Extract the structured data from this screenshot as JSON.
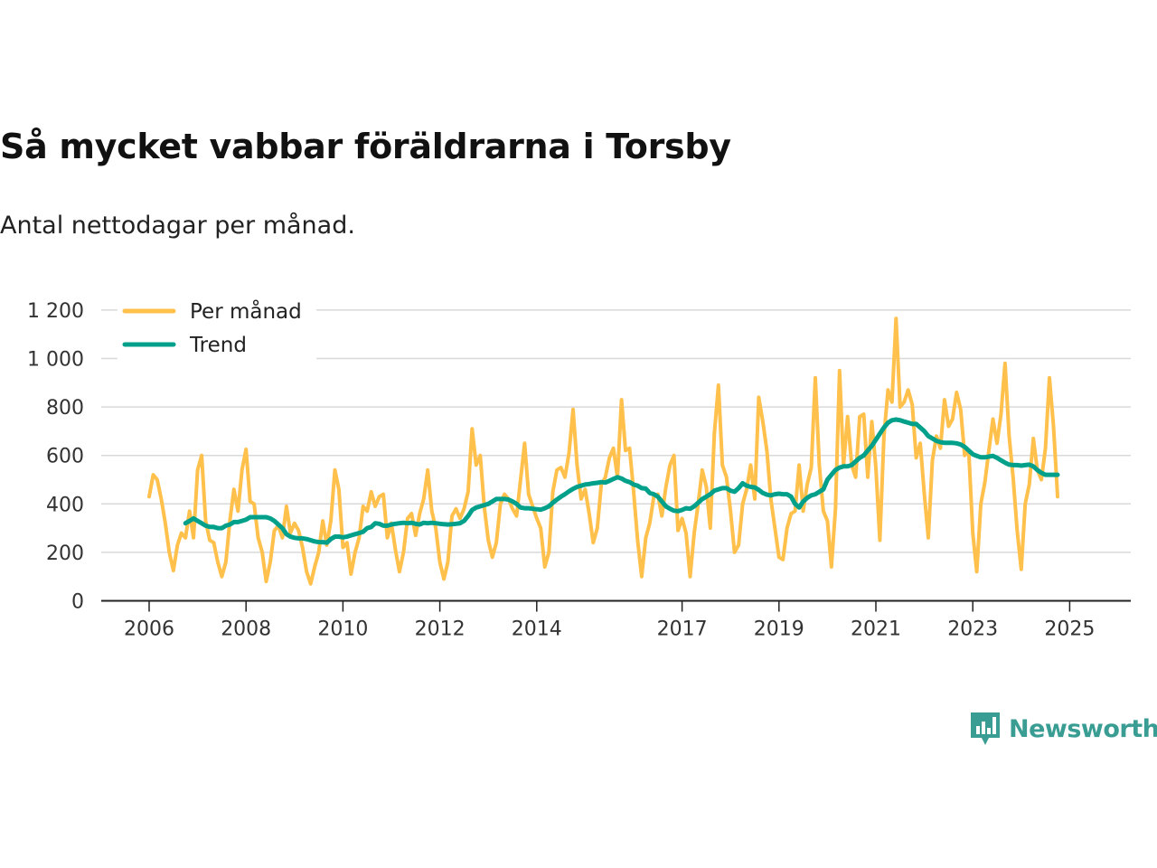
{
  "title": "Så mycket vabbar föräldrarna i Torsby",
  "subtitle": "Antal nettodagar per månad.",
  "brand": {
    "name": "Newsworthy",
    "color": "#3a9d93",
    "icon": "bar-chart-speech-bubble-icon"
  },
  "chart_data": {
    "type": "line",
    "x_start": 2006.0,
    "x_step_years": 0.08333,
    "xlim": [
      2006.0,
      2025.4
    ],
    "ylim": [
      0,
      1200
    ],
    "x_ticks": [
      2006,
      2008,
      2010,
      2012,
      2014,
      2017,
      2019,
      2021,
      2023,
      2025
    ],
    "y_ticks": [
      0,
      200,
      400,
      600,
      800,
      1000,
      1200
    ],
    "y_tick_labels": [
      "0",
      "200",
      "400",
      "600",
      "800",
      "1 000",
      "1 200"
    ],
    "grid": true,
    "legend_position": "top-left",
    "series": [
      {
        "name": "Per månad",
        "color": "#ffc04c",
        "values": [
          430,
          520,
          500,
          420,
          320,
          200,
          125,
          230,
          280,
          260,
          370,
          260,
          540,
          600,
          330,
          250,
          240,
          160,
          100,
          160,
          330,
          460,
          370,
          540,
          625,
          410,
          400,
          260,
          200,
          80,
          160,
          290,
          310,
          260,
          390,
          280,
          320,
          290,
          220,
          120,
          70,
          140,
          200,
          330,
          230,
          330,
          540,
          460,
          220,
          240,
          110,
          200,
          260,
          390,
          370,
          450,
          390,
          430,
          440,
          260,
          320,
          210,
          120,
          200,
          340,
          360,
          270,
          360,
          420,
          540,
          370,
          300,
          160,
          90,
          160,
          350,
          380,
          340,
          380,
          450,
          710,
          560,
          600,
          390,
          250,
          180,
          240,
          400,
          440,
          420,
          380,
          350,
          500,
          650,
          440,
          390,
          340,
          300,
          140,
          200,
          450,
          540,
          550,
          510,
          610,
          790,
          560,
          420,
          460,
          360,
          240,
          300,
          480,
          510,
          590,
          630,
          510,
          830,
          620,
          630,
          450,
          250,
          100,
          260,
          320,
          430,
          440,
          350,
          470,
          560,
          600,
          290,
          340,
          280,
          100,
          280,
          400,
          540,
          470,
          300,
          690,
          890,
          560,
          510,
          370,
          200,
          230,
          400,
          460,
          560,
          420,
          840,
          740,
          620,
          420,
          300,
          180,
          170,
          300,
          360,
          370,
          560,
          370,
          480,
          550,
          920,
          560,
          370,
          330,
          140,
          380,
          950,
          560,
          760,
          560,
          510,
          760,
          770,
          510,
          740,
          550,
          250,
          680,
          870,
          820,
          1165,
          800,
          820,
          870,
          810,
          590,
          650,
          440,
          260,
          580,
          680,
          630,
          830,
          720,
          750,
          860,
          790,
          600,
          620,
          280,
          120,
          400,
          490,
          620,
          750,
          650,
          770,
          980,
          680,
          510,
          290,
          130,
          400,
          480,
          670,
          540,
          500,
          630,
          920,
          720,
          430
        ]
      },
      {
        "name": "Trend",
        "color": "#00a08a",
        "start_index": 9,
        "values": [
          320,
          330,
          340,
          330,
          320,
          310,
          305,
          305,
          300,
          300,
          310,
          315,
          325,
          325,
          330,
          335,
          345,
          345,
          345,
          345,
          345,
          340,
          330,
          315,
          300,
          275,
          265,
          260,
          258,
          258,
          255,
          250,
          245,
          242,
          242,
          240,
          255,
          265,
          265,
          262,
          265,
          270,
          275,
          280,
          285,
          300,
          305,
          320,
          318,
          310,
          310,
          315,
          318,
          320,
          322,
          320,
          322,
          318,
          315,
          322,
          320,
          322,
          320,
          318,
          316,
          315,
          316,
          318,
          320,
          330,
          350,
          375,
          385,
          390,
          395,
          400,
          410,
          420,
          420,
          420,
          418,
          410,
          400,
          385,
          382,
          382,
          380,
          378,
          376,
          382,
          390,
          405,
          418,
          430,
          440,
          452,
          462,
          470,
          475,
          480,
          482,
          485,
          487,
          490,
          488,
          495,
          503,
          510,
          505,
          495,
          490,
          480,
          475,
          465,
          463,
          445,
          440,
          430,
          410,
          390,
          380,
          372,
          370,
          375,
          382,
          380,
          390,
          405,
          420,
          430,
          440,
          455,
          460,
          465,
          465,
          455,
          450,
          465,
          485,
          475,
          470,
          468,
          458,
          445,
          438,
          435,
          440,
          442,
          440,
          440,
          430,
          400,
          385,
          410,
          425,
          435,
          440,
          450,
          460,
          500,
          520,
          540,
          550,
          555,
          555,
          560,
          575,
          590,
          600,
          620,
          640,
          665,
          690,
          715,
          735,
          745,
          748,
          745,
          740,
          735,
          730,
          730,
          715,
          700,
          680,
          670,
          660,
          655,
          652,
          652,
          652,
          650,
          645,
          635,
          620,
          605,
          598,
          592,
          592,
          595,
          598,
          590,
          580,
          570,
          562,
          560,
          560,
          558,
          560,
          562,
          555,
          540,
          528,
          520,
          520,
          520,
          520
        ]
      }
    ]
  }
}
